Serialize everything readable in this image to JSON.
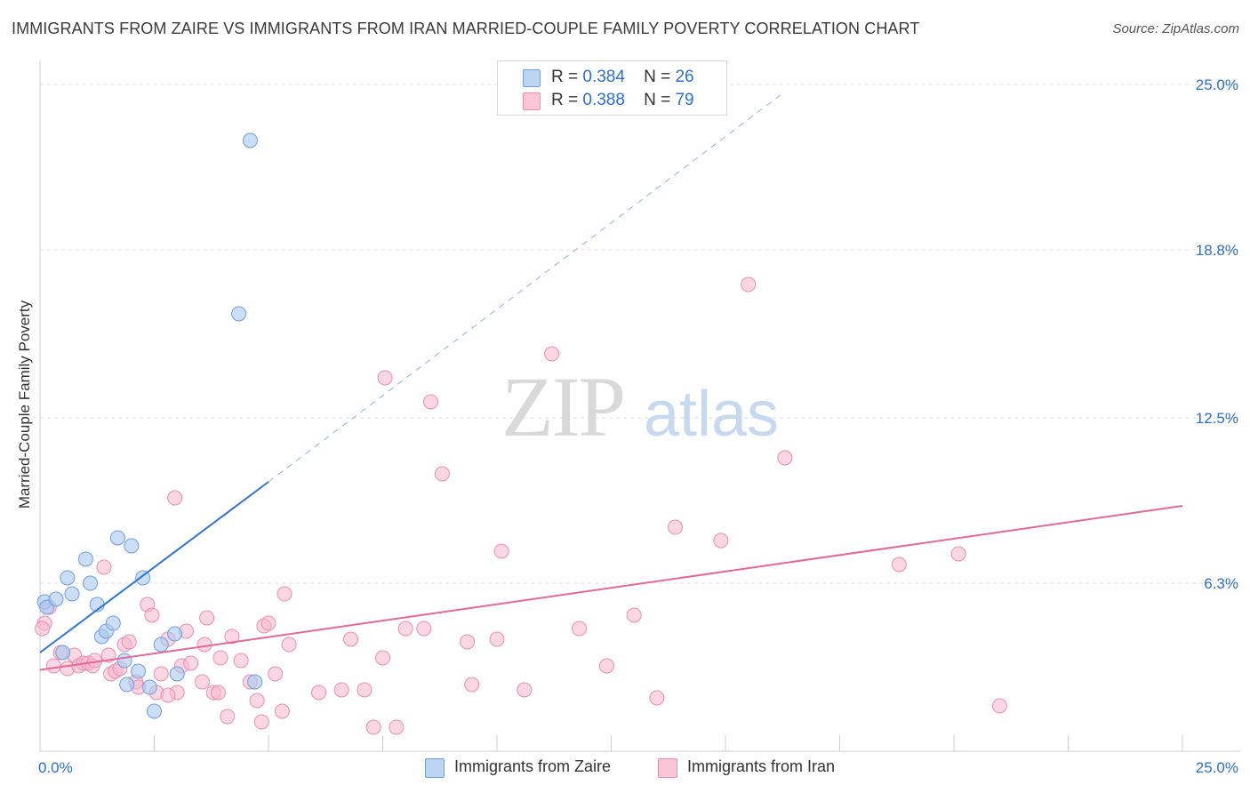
{
  "title": "IMMIGRANTS FROM ZAIRE VS IMMIGRANTS FROM IRAN MARRIED-COUPLE FAMILY POVERTY CORRELATION CHART",
  "source": "Source: ZipAtlas.com",
  "colors": {
    "zaire_fill": "#a8c8f0",
    "zaire_stroke": "#6f9fde",
    "zaire_line": "#2f74d0",
    "iran_fill": "#f6b7cc",
    "iran_stroke": "#ec8fae",
    "iran_line": "#e3699a",
    "axis_text": "#2e6fd0",
    "grid": "#dddddd"
  },
  "legend": {
    "r_label": "R =",
    "n_label": "N =",
    "zaire": {
      "r": "0.384",
      "n": "26"
    },
    "iran": {
      "r": "0.388",
      "n": "79"
    }
  },
  "watermark": {
    "zip": "ZIP",
    "atlas": "atlas"
  },
  "chart_data": {
    "type": "scatter",
    "title": "IMMIGRANTS FROM ZAIRE VS IMMIGRANTS FROM IRAN MARRIED-COUPLE FAMILY POVERTY CORRELATION CHART",
    "xlabel": "",
    "ylabel": "Married-Couple Family Poverty",
    "xlim": [
      0,
      25
    ],
    "ylim": [
      0,
      25.5
    ],
    "x_tick_labels": [
      "0.0%",
      "25.0%"
    ],
    "y_tick_values": [
      6.3,
      12.5,
      18.8,
      25.0
    ],
    "y_tick_labels": [
      "6.3%",
      "12.5%",
      "18.8%",
      "25.0%"
    ],
    "series": [
      {
        "name": "Immigrants from Zaire",
        "points": [
          [
            0.1,
            5.6
          ],
          [
            0.15,
            5.4
          ],
          [
            0.35,
            5.7
          ],
          [
            0.6,
            6.5
          ],
          [
            0.7,
            5.9
          ],
          [
            1.0,
            7.2
          ],
          [
            1.1,
            6.3
          ],
          [
            1.25,
            5.5
          ],
          [
            1.35,
            4.3
          ],
          [
            1.45,
            4.5
          ],
          [
            1.6,
            4.8
          ],
          [
            1.7,
            8.0
          ],
          [
            1.85,
            3.4
          ],
          [
            2.0,
            7.7
          ],
          [
            2.15,
            3.0
          ],
          [
            2.25,
            6.5
          ],
          [
            2.4,
            2.4
          ],
          [
            2.5,
            1.5
          ],
          [
            2.65,
            4.0
          ],
          [
            2.95,
            4.4
          ],
          [
            3.0,
            2.9
          ],
          [
            4.35,
            16.4
          ],
          [
            4.6,
            22.9
          ],
          [
            4.7,
            2.6
          ],
          [
            0.5,
            3.7
          ],
          [
            1.9,
            2.5
          ]
        ],
        "trend_solid": [
          [
            0.0,
            3.7
          ],
          [
            5.0,
            10.1
          ]
        ],
        "trend_dashed": [
          [
            5.0,
            10.1
          ],
          [
            16.2,
            24.6
          ]
        ]
      },
      {
        "name": "Immigrants from Iran",
        "points": [
          [
            0.1,
            4.8
          ],
          [
            0.2,
            5.4
          ],
          [
            0.45,
            3.7
          ],
          [
            0.6,
            3.1
          ],
          [
            0.75,
            3.6
          ],
          [
            0.85,
            3.2
          ],
          [
            0.95,
            3.3
          ],
          [
            1.05,
            3.3
          ],
          [
            1.15,
            3.2
          ],
          [
            1.4,
            6.9
          ],
          [
            1.5,
            3.6
          ],
          [
            1.55,
            2.9
          ],
          [
            1.65,
            3.0
          ],
          [
            1.75,
            3.1
          ],
          [
            1.85,
            4.0
          ],
          [
            1.95,
            4.1
          ],
          [
            2.1,
            2.6
          ],
          [
            2.15,
            2.4
          ],
          [
            2.35,
            5.5
          ],
          [
            2.45,
            5.1
          ],
          [
            2.55,
            2.2
          ],
          [
            2.65,
            2.9
          ],
          [
            2.8,
            4.2
          ],
          [
            2.95,
            9.5
          ],
          [
            3.0,
            2.2
          ],
          [
            3.1,
            3.2
          ],
          [
            3.2,
            4.5
          ],
          [
            3.3,
            3.3
          ],
          [
            3.55,
            2.6
          ],
          [
            3.6,
            4.0
          ],
          [
            3.65,
            5.0
          ],
          [
            3.8,
            2.2
          ],
          [
            3.9,
            2.2
          ],
          [
            4.1,
            1.3
          ],
          [
            4.2,
            4.3
          ],
          [
            4.4,
            3.4
          ],
          [
            4.6,
            2.6
          ],
          [
            4.75,
            1.9
          ],
          [
            4.85,
            1.1
          ],
          [
            4.9,
            4.7
          ],
          [
            5.0,
            4.8
          ],
          [
            5.15,
            2.9
          ],
          [
            5.3,
            1.5
          ],
          [
            5.35,
            5.9
          ],
          [
            5.45,
            4.0
          ],
          [
            6.1,
            2.2
          ],
          [
            6.6,
            2.3
          ],
          [
            6.8,
            4.2
          ],
          [
            7.1,
            2.3
          ],
          [
            7.3,
            0.9
          ],
          [
            7.5,
            3.5
          ],
          [
            7.55,
            14.0
          ],
          [
            7.8,
            0.9
          ],
          [
            8.0,
            4.6
          ],
          [
            8.4,
            4.6
          ],
          [
            8.55,
            13.1
          ],
          [
            8.8,
            10.4
          ],
          [
            9.35,
            4.1
          ],
          [
            9.45,
            2.5
          ],
          [
            10.0,
            4.2
          ],
          [
            10.1,
            7.5
          ],
          [
            10.6,
            2.3
          ],
          [
            11.2,
            14.9
          ],
          [
            11.8,
            4.6
          ],
          [
            12.4,
            3.2
          ],
          [
            13.0,
            5.1
          ],
          [
            13.5,
            2.0
          ],
          [
            13.9,
            8.4
          ],
          [
            14.9,
            7.9
          ],
          [
            15.5,
            17.5
          ],
          [
            16.3,
            11.0
          ],
          [
            18.8,
            7.0
          ],
          [
            20.1,
            7.4
          ],
          [
            21.0,
            1.7
          ],
          [
            0.05,
            4.6
          ],
          [
            0.3,
            3.2
          ],
          [
            1.2,
            3.4
          ],
          [
            2.8,
            2.1
          ],
          [
            3.95,
            3.5
          ]
        ],
        "trend_solid": [
          [
            0.0,
            3.05
          ],
          [
            25.0,
            9.2
          ]
        ]
      }
    ],
    "legend_position": "top-center"
  }
}
